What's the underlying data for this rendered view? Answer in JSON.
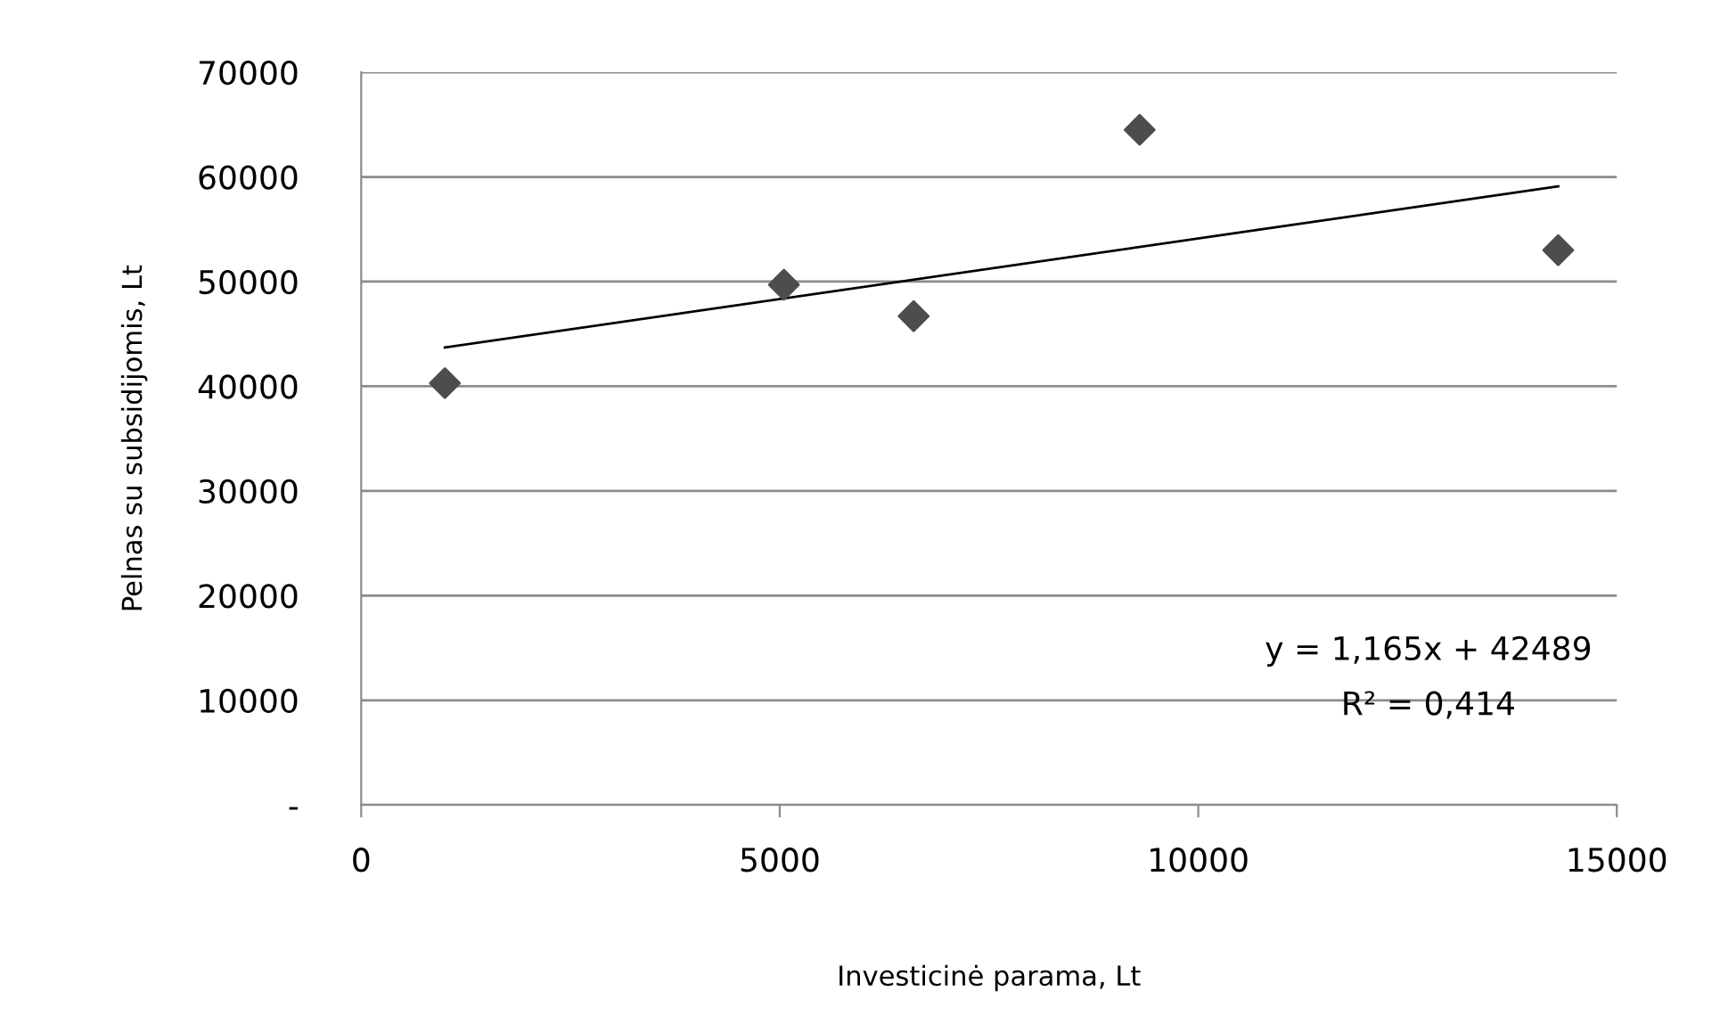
{
  "chart_data": {
    "type": "scatter",
    "xlabel": "Investicinė parama, Lt",
    "ylabel": "Pelnas su subsidijomis, Lt",
    "xlim": [
      0,
      15000
    ],
    "xticks": [
      0,
      5000,
      10000,
      15000
    ],
    "ylim": [
      0,
      70000
    ],
    "yticks": [
      {
        "value": 0,
        "label": "-"
      },
      10000,
      20000,
      30000,
      40000,
      50000,
      60000,
      70000
    ],
    "grid": "y",
    "marker": "diamond",
    "series": [
      {
        "color": "#4d4d4d",
        "x": [
          1000,
          5050,
          6600,
          9300,
          14300
        ],
        "values": [
          40300,
          49700,
          46700,
          64500,
          53000
        ]
      },
      {
        "type": "line",
        "color": "#000000",
        "marker": "none",
        "x": [
          1000,
          14300
        ],
        "values": [
          43700,
          59100
        ]
      }
    ],
    "annotations": [
      "y = 1,165x + 42489",
      "R² = 0,414"
    ]
  }
}
